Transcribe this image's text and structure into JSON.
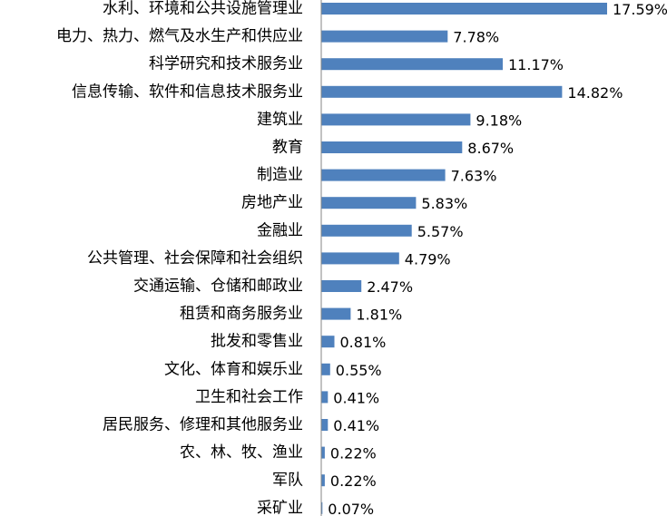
{
  "chart_data": {
    "type": "bar",
    "orientation": "horizontal",
    "categories": [
      "水利、环境和公共设施管理业",
      "电力、热力、燃气及水生产和供应业",
      "科学研究和技术服务业",
      "信息传输、软件和信息技术服务业",
      "建筑业",
      "教育",
      "制造业",
      "房地产业",
      "金融业",
      "公共管理、社会保障和社会组织",
      "交通运输、仓储和邮政业",
      "租赁和商务服务业",
      "批发和零售业",
      "文化、体育和娱乐业",
      "卫生和社会工作",
      "居民服务、修理和其他服务业",
      "农、林、牧、渔业",
      "军队",
      "采矿业"
    ],
    "values": [
      17.59,
      7.78,
      11.17,
      14.82,
      9.18,
      8.67,
      7.63,
      5.83,
      5.57,
      4.79,
      2.47,
      1.81,
      0.81,
      0.55,
      0.41,
      0.41,
      0.22,
      0.22,
      0.07
    ],
    "value_labels": [
      "17.59%",
      "7.78%",
      "11.17%",
      "14.82%",
      "9.18%",
      "8.67%",
      "7.63%",
      "5.83%",
      "5.57%",
      "4.79%",
      "2.47%",
      "1.81%",
      "0.81%",
      "0.55%",
      "0.41%",
      "0.41%",
      "0.22%",
      "0.22%",
      "0.07%"
    ],
    "unit": "%",
    "xlim": [
      0,
      17.59
    ],
    "grid": false,
    "legend": "none",
    "bar_color": "#4f81bd",
    "axis_color": "#868686"
  }
}
